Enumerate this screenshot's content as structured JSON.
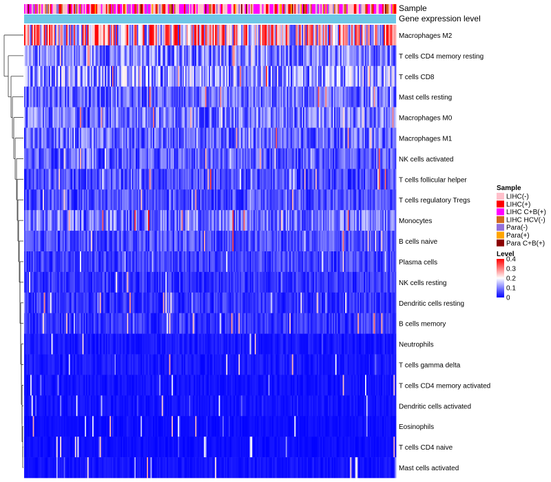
{
  "chart_data": {
    "type": "heatmap",
    "annotation_tracks": [
      {
        "name": "Sample"
      },
      {
        "name": "Gene expression level"
      }
    ],
    "row_labels": [
      "Macrophages M2",
      "T cells CD4 memory resting",
      "T cells CD8",
      "Mast cells resting",
      "Macrophages M0",
      "Macrophages M1",
      "NK cells activated",
      "T cells follicular helper",
      "T cells regulatory  Tregs",
      "Monocytes",
      "B cells naive",
      "Plasma cells",
      "NK cells resting",
      "Dendritic cells resting",
      "B cells memory",
      "Neutrophils",
      "T cells gamma delta",
      "T cells CD4 memory activated",
      "Dendritic cells activated",
      "Eosinophils",
      "T cells CD4 naive",
      "Mast cells activated"
    ],
    "row_mean_level": [
      0.24,
      0.1,
      0.12,
      0.08,
      0.09,
      0.08,
      0.07,
      0.06,
      0.06,
      0.09,
      0.06,
      0.05,
      0.04,
      0.04,
      0.04,
      0.02,
      0.02,
      0.015,
      0.015,
      0.01,
      0.01,
      0.015
    ],
    "n_columns": 300,
    "sample_legend": {
      "title": "Sample",
      "entries": [
        {
          "label": "LIHC(-)",
          "color": "#FFC0CB"
        },
        {
          "label": "LIHC(+)",
          "color": "#FF0000"
        },
        {
          "label": "LIHC C+B(+)",
          "color": "#FF00FF"
        },
        {
          "label": "LIHC HCV(-)",
          "color": "#D2691E"
        },
        {
          "label": "Para(-)",
          "color": "#9370DB"
        },
        {
          "label": "Para(+)",
          "color": "#FFA500"
        },
        {
          "label": "Para C+B(+)",
          "color": "#8B0000"
        }
      ]
    },
    "level_legend": {
      "title": "Level",
      "ticks": [
        "0.4",
        "0.3",
        "0.2",
        "0.1",
        "0"
      ],
      "tick_values": [
        0.4,
        0.3,
        0.2,
        0.1,
        0
      ],
      "range": [
        0,
        0.4
      ],
      "colors": [
        "#0000FF",
        "#FFFFFF",
        "#FF0000"
      ]
    },
    "gene_expression_color": "#6EC6E6"
  }
}
